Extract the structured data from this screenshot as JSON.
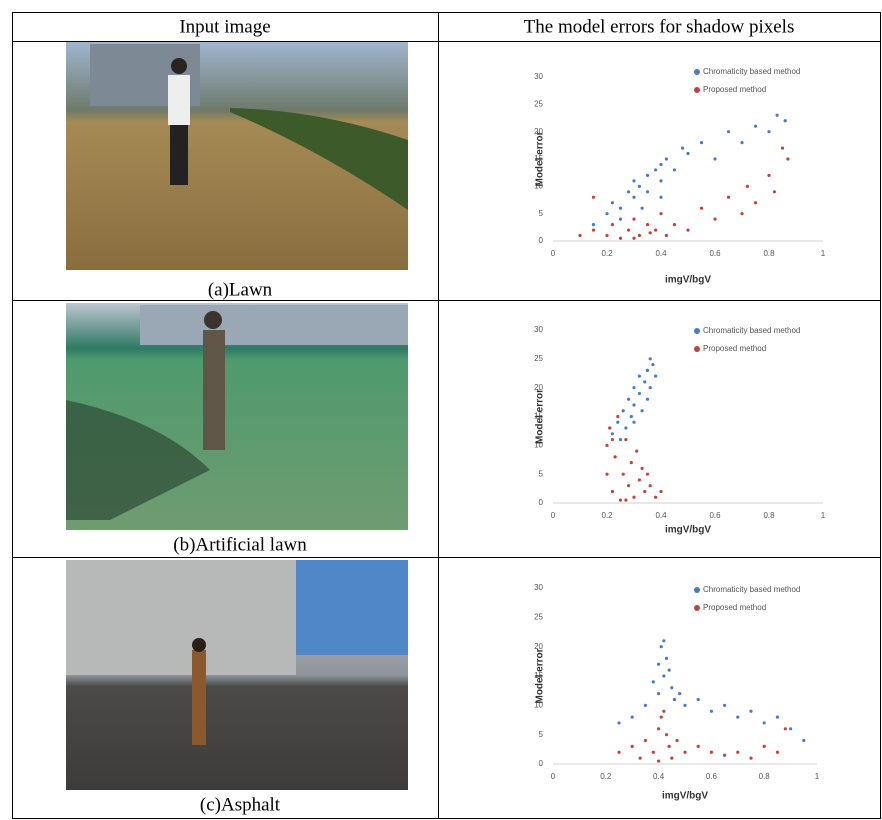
{
  "table": {
    "headers": [
      "Input image",
      "The model errors for shadow pixels"
    ],
    "rows": [
      {
        "caption": "(a)Lawn",
        "chart": {
          "type": "scatter",
          "xlabel": "imgV/bgV",
          "ylabel": "Model error",
          "xlim": [
            0,
            1
          ],
          "ylim": [
            0,
            30
          ],
          "xticks": [
            0,
            0.2,
            0.4,
            0.6,
            0.8,
            1
          ],
          "yticks": [
            0,
            5,
            10,
            15,
            20,
            25,
            30
          ],
          "series": [
            {
              "name": "Chromaticity based method",
              "color": "#4a7cc4",
              "x": [
                0.15,
                0.2,
                0.22,
                0.25,
                0.28,
                0.3,
                0.3,
                0.32,
                0.35,
                0.35,
                0.38,
                0.4,
                0.4,
                0.42,
                0.45,
                0.48,
                0.5,
                0.55,
                0.6,
                0.65,
                0.7,
                0.75,
                0.8,
                0.83,
                0.86,
                0.25,
                0.33,
                0.4
              ],
              "values": [
                3,
                5,
                7,
                6,
                9,
                8,
                11,
                10,
                12,
                9,
                13,
                11,
                14,
                15,
                13,
                17,
                16,
                18,
                15,
                20,
                18,
                21,
                20,
                23,
                22,
                4,
                6,
                8
              ]
            },
            {
              "name": "Proposed method",
              "color": "#c0443e",
              "x": [
                0.1,
                0.15,
                0.2,
                0.22,
                0.25,
                0.28,
                0.3,
                0.32,
                0.35,
                0.38,
                0.4,
                0.42,
                0.45,
                0.5,
                0.55,
                0.6,
                0.65,
                0.7,
                0.72,
                0.75,
                0.8,
                0.82,
                0.85,
                0.87,
                0.3,
                0.36,
                0.15
              ],
              "values": [
                1,
                2,
                1,
                3,
                0.5,
                2,
                4,
                1,
                3,
                2,
                5,
                1,
                3,
                2,
                6,
                4,
                8,
                5,
                10,
                7,
                12,
                9,
                17,
                15,
                0.5,
                1.5,
                8
              ]
            }
          ]
        }
      },
      {
        "caption": "(b)Artificial lawn",
        "chart": {
          "type": "scatter",
          "xlabel": "imgV/bgV",
          "ylabel": "Model error",
          "xlim": [
            0,
            1
          ],
          "ylim": [
            0,
            30
          ],
          "xticks": [
            0,
            0.2,
            0.4,
            0.6,
            0.8,
            1
          ],
          "yticks": [
            0,
            5,
            10,
            15,
            20,
            25,
            30
          ],
          "series": [
            {
              "name": "Chromaticity based method",
              "color": "#4a7cc4",
              "x": [
                0.22,
                0.24,
                0.26,
                0.27,
                0.28,
                0.3,
                0.3,
                0.32,
                0.32,
                0.34,
                0.35,
                0.36,
                0.37,
                0.38,
                0.25,
                0.29,
                0.33,
                0.35,
                0.3,
                0.36
              ],
              "values": [
                12,
                14,
                16,
                13,
                18,
                17,
                20,
                19,
                22,
                21,
                23,
                20,
                24,
                22,
                11,
                15,
                16,
                18,
                14,
                25
              ]
            },
            {
              "name": "Proposed method",
              "color": "#c0443e",
              "x": [
                0.2,
                0.2,
                0.21,
                0.22,
                0.23,
                0.24,
                0.25,
                0.26,
                0.27,
                0.28,
                0.29,
                0.3,
                0.31,
                0.32,
                0.33,
                0.34,
                0.35,
                0.36,
                0.38,
                0.4,
                0.22,
                0.27
              ],
              "values": [
                5,
                10,
                13,
                2,
                8,
                15,
                0.5,
                5,
                11,
                3,
                7,
                1,
                9,
                4,
                6,
                2,
                5,
                3,
                1,
                2,
                11,
                0.5
              ]
            }
          ]
        }
      },
      {
        "caption": "(c)Asphalt",
        "chart": {
          "type": "scatter",
          "xlabel": "imgV/bgV",
          "ylabel": "Model error",
          "xlim": [
            0,
            1
          ],
          "ylim": [
            0,
            30
          ],
          "xticks": [
            0,
            0.2,
            0.4,
            0.6,
            0.8,
            1
          ],
          "yticks": [
            0,
            5,
            10,
            15,
            20,
            25,
            30
          ],
          "series": [
            {
              "name": "Chromaticity based method",
              "color": "#4a7cc4",
              "x": [
                0.25,
                0.3,
                0.35,
                0.38,
                0.4,
                0.41,
                0.42,
                0.43,
                0.44,
                0.45,
                0.46,
                0.48,
                0.5,
                0.55,
                0.6,
                0.65,
                0.7,
                0.75,
                0.8,
                0.85,
                0.9,
                0.95,
                0.4,
                0.42
              ],
              "values": [
                7,
                8,
                10,
                14,
                17,
                20,
                21,
                18,
                16,
                13,
                11,
                12,
                10,
                11,
                9,
                10,
                8,
                9,
                7,
                8,
                6,
                4,
                12,
                15
              ]
            },
            {
              "name": "Proposed method",
              "color": "#c0443e",
              "x": [
                0.25,
                0.3,
                0.33,
                0.35,
                0.38,
                0.4,
                0.41,
                0.42,
                0.43,
                0.44,
                0.45,
                0.47,
                0.5,
                0.55,
                0.6,
                0.65,
                0.7,
                0.75,
                0.8,
                0.85,
                0.88,
                0.4
              ],
              "values": [
                2,
                3,
                1,
                4,
                2,
                6,
                8,
                9,
                5,
                3,
                1,
                4,
                2,
                3,
                2,
                1.5,
                2,
                1,
                3,
                2,
                6,
                0.5
              ]
            }
          ]
        }
      }
    ]
  }
}
